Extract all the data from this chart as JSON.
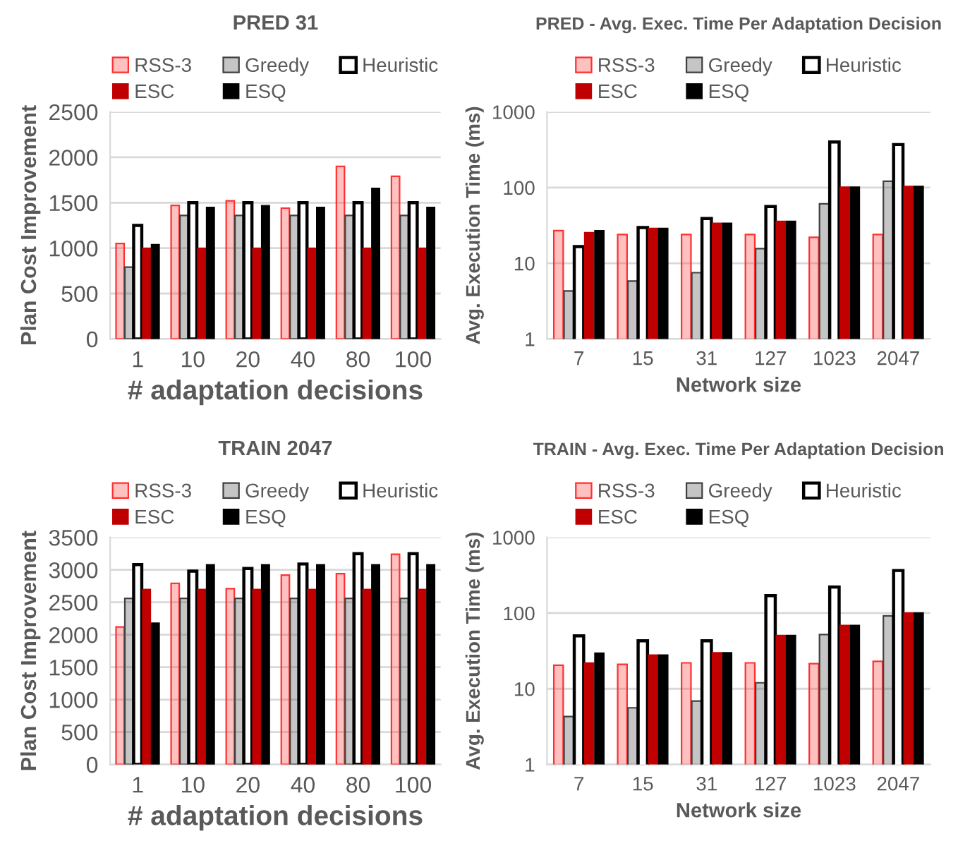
{
  "chart_data": [
    {
      "type": "bar",
      "title": "PRED 31",
      "xlabel": "# adaptation decisions",
      "ylabel": "Plan Cost Improvement",
      "categories": [
        "1",
        "10",
        "20",
        "40",
        "80",
        "100"
      ],
      "ylim": [
        0,
        2500
      ],
      "yticks": [
        0,
        500,
        1000,
        1500,
        2000,
        2500
      ],
      "grid": "y",
      "legend": "top",
      "series": [
        {
          "name": "RSS-3",
          "color": "#ff3030",
          "values": [
            1050,
            1470,
            1520,
            1440,
            1900,
            1790
          ]
        },
        {
          "name": "Greedy",
          "color": "#404040",
          "values": [
            790,
            1360,
            1360,
            1360,
            1360,
            1360
          ]
        },
        {
          "name": "Heuristic",
          "color": "#ffffff",
          "values": [
            1250,
            1500,
            1500,
            1500,
            1500,
            1500
          ]
        },
        {
          "name": "ESC",
          "color": "#c00000",
          "values": [
            1000,
            1000,
            1000,
            1000,
            1000,
            1000
          ]
        },
        {
          "name": "ESQ",
          "color": "#000000",
          "values": [
            1040,
            1450,
            1470,
            1450,
            1660,
            1450
          ]
        }
      ]
    },
    {
      "type": "bar",
      "title": "PRED - Avg. Exec. Time Per Adaptation Decision",
      "xlabel": "Network size",
      "ylabel": "Avg. Execution Time (ms)",
      "categories": [
        "7",
        "15",
        "31",
        "127",
        "1023",
        "2047"
      ],
      "log": true,
      "ylim": [
        1,
        1000
      ],
      "yticks": [
        1,
        10,
        100,
        1000
      ],
      "grid": "y",
      "legend": "top",
      "series": [
        {
          "name": "RSS-3",
          "color": "#ff3030",
          "values": [
            27,
            24,
            24,
            24,
            22,
            24
          ]
        },
        {
          "name": "Greedy",
          "color": "#404040",
          "values": [
            4.3,
            5.8,
            7.5,
            15.6,
            61,
            121
          ]
        },
        {
          "name": "Heuristic",
          "color": "#ffffff",
          "values": [
            16.6,
            29.6,
            39,
            56,
            400,
            370
          ]
        },
        {
          "name": "ESC",
          "color": "#c00000",
          "values": [
            25.5,
            29,
            34,
            36,
            102,
            104
          ]
        },
        {
          "name": "ESQ",
          "color": "#000000",
          "values": [
            27,
            29,
            34,
            36,
            102,
            104
          ]
        }
      ]
    },
    {
      "type": "bar",
      "title": "TRAIN 2047",
      "xlabel": "# adaptation decisions",
      "ylabel": "Plan Cost Improvement",
      "categories": [
        "1",
        "10",
        "20",
        "40",
        "80",
        "100"
      ],
      "ylim": [
        0,
        3500
      ],
      "yticks": [
        0,
        500,
        1000,
        1500,
        2000,
        2500,
        3000,
        3500
      ],
      "grid": "y",
      "legend": "top",
      "series": [
        {
          "name": "RSS-3",
          "color": "#ff3030",
          "values": [
            2120,
            2790,
            2710,
            2920,
            2940,
            3240
          ]
        },
        {
          "name": "Greedy",
          "color": "#404040",
          "values": [
            2560,
            2560,
            2560,
            2560,
            2560,
            2560
          ]
        },
        {
          "name": "Heuristic",
          "color": "#ffffff",
          "values": [
            3080,
            2980,
            3020,
            3090,
            3250,
            3250
          ]
        },
        {
          "name": "ESC",
          "color": "#c00000",
          "values": [
            2700,
            2700,
            2700,
            2700,
            2700,
            2700
          ]
        },
        {
          "name": "ESQ",
          "color": "#000000",
          "values": [
            2180,
            3080,
            3080,
            3080,
            3080,
            3080
          ]
        }
      ]
    },
    {
      "type": "bar",
      "title": "TRAIN - Avg. Exec. Time Per Adaptation Decision",
      "xlabel": "Network size",
      "ylabel": "Avg. Execution Time (ms)",
      "categories": [
        "7",
        "15",
        "31",
        "127",
        "1023",
        "2047"
      ],
      "log": true,
      "ylim": [
        1,
        1000
      ],
      "yticks": [
        1,
        10,
        100,
        1000
      ],
      "grid": "y",
      "legend": "top",
      "series": [
        {
          "name": "RSS-3",
          "color": "#ff3030",
          "values": [
            20.5,
            21,
            22,
            22,
            21.5,
            23
          ]
        },
        {
          "name": "Greedy",
          "color": "#404040",
          "values": [
            4.3,
            5.6,
            6.9,
            12,
            52,
            92
          ]
        },
        {
          "name": "Heuristic",
          "color": "#ffffff",
          "values": [
            50,
            43,
            43,
            170,
            221,
            365
          ]
        },
        {
          "name": "ESC",
          "color": "#c00000",
          "values": [
            22,
            28,
            30,
            51,
            69,
            101
          ]
        },
        {
          "name": "ESQ",
          "color": "#000000",
          "values": [
            29.8,
            28,
            30,
            51,
            69,
            101
          ]
        }
      ]
    }
  ]
}
